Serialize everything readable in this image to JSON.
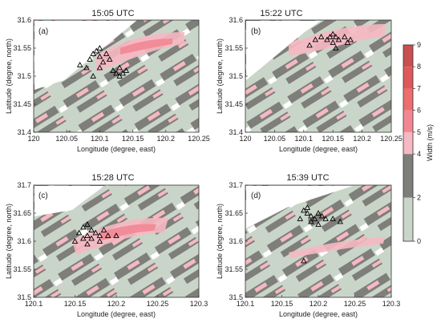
{
  "chart_data": {
    "type": "heatmap",
    "colorbar": {
      "label": "Width (m/s)",
      "ticks": [
        0,
        2,
        4,
        5,
        6,
        7,
        8,
        9
      ],
      "levels": [
        {
          "from": 0,
          "to": 2,
          "color": "#c9d5c8"
        },
        {
          "from": 2,
          "to": 4,
          "color": "#7e7e7a"
        },
        {
          "from": 4,
          "to": 5,
          "color": "#f6b8c2"
        },
        {
          "from": 5,
          "to": 6,
          "color": "#f28793"
        },
        {
          "from": 6,
          "to": 7,
          "color": "#ec6e6e"
        },
        {
          "from": 7,
          "to": 8,
          "color": "#de5a5a"
        },
        {
          "from": 8,
          "to": 9,
          "color": "#c8504f"
        }
      ]
    },
    "panels": [
      {
        "id": "a",
        "label": "(a)",
        "title": "15:05 UTC",
        "xlabel": "Longitude (degree, east)",
        "ylabel": "Latitude (degree, north)",
        "xlim": [
          120,
          120.25
        ],
        "ylim": [
          31.4,
          31.6
        ],
        "xticks": [
          "120",
          "120.05",
          "120.1",
          "120.15",
          "120.2",
          "120.25"
        ],
        "yticks": [
          "31.4",
          "31.45",
          "31.5",
          "31.55",
          "31.6"
        ],
        "empty_corner": "top-left",
        "markers": [
          [
            120.07,
            31.52
          ],
          [
            120.08,
            31.515
          ],
          [
            120.085,
            31.53
          ],
          [
            120.09,
            31.54
          ],
          [
            120.095,
            31.545
          ],
          [
            120.1,
            31.55
          ],
          [
            120.1,
            31.535
          ],
          [
            120.105,
            31.525
          ],
          [
            120.11,
            31.54
          ],
          [
            120.115,
            31.53
          ],
          [
            120.12,
            31.51
          ],
          [
            120.125,
            31.505
          ],
          [
            120.13,
            31.515
          ],
          [
            120.13,
            31.5
          ],
          [
            120.135,
            31.505
          ],
          [
            120.14,
            31.51
          ],
          [
            120.1,
            31.515
          ],
          [
            120.09,
            31.5
          ]
        ]
      },
      {
        "id": "b",
        "label": "(b)",
        "title": "15:22 UTC",
        "xlabel": "Longitude (degree, east)",
        "ylabel": "Latitude (degree, north)",
        "xlim": [
          120,
          120.25
        ],
        "ylim": [
          31.4,
          31.6
        ],
        "xticks": [
          "120",
          "120.05",
          "120.1",
          "120.15",
          "120.2",
          "120.25"
        ],
        "yticks": [
          "31.4",
          "31.45",
          "31.5",
          "31.55",
          "31.6"
        ],
        "empty_corner": "top-left",
        "markers": [
          [
            120.12,
            31.565
          ],
          [
            120.13,
            31.57
          ],
          [
            120.14,
            31.565
          ],
          [
            120.145,
            31.57
          ],
          [
            120.15,
            31.575
          ],
          [
            120.155,
            31.57
          ],
          [
            120.16,
            31.565
          ],
          [
            120.15,
            31.56
          ],
          [
            120.17,
            31.57
          ],
          [
            120.18,
            31.565
          ],
          [
            120.175,
            31.56
          ],
          [
            120.155,
            31.55
          ],
          [
            120.11,
            31.555
          ]
        ]
      },
      {
        "id": "c",
        "label": "(c)",
        "title": "15:28 UTC",
        "xlabel": "Longitude (degree, east)",
        "ylabel": "Latitude (degree, north)",
        "xlim": [
          120.1,
          120.3
        ],
        "ylim": [
          31.5,
          31.7
        ],
        "xticks": [
          "120.1",
          "120.15",
          "120.2",
          "120.25",
          "120.3"
        ],
        "yticks": [
          "31.5",
          "31.55",
          "31.6",
          "31.65",
          "31.7"
        ],
        "empty_corner": "top-left",
        "markers": [
          [
            120.155,
            31.615
          ],
          [
            120.16,
            31.625
          ],
          [
            120.165,
            31.63
          ],
          [
            120.17,
            31.62
          ],
          [
            120.175,
            31.615
          ],
          [
            120.165,
            31.61
          ],
          [
            120.16,
            31.605
          ],
          [
            120.17,
            31.605
          ],
          [
            120.18,
            31.61
          ],
          [
            120.185,
            31.62
          ],
          [
            120.19,
            31.61
          ],
          [
            120.2,
            31.61
          ],
          [
            120.15,
            31.6
          ],
          [
            120.165,
            31.595
          ],
          [
            120.18,
            31.6
          ]
        ]
      },
      {
        "id": "d",
        "label": "(d)",
        "title": "15:39 UTC",
        "xlabel": "Longitude (degree, east)",
        "ylabel": "Latitude (degree, north)",
        "xlim": [
          120.1,
          120.3
        ],
        "ylim": [
          31.5,
          31.7
        ],
        "xticks": [
          "120.1",
          "120.15",
          "120.2",
          "120.25",
          "120.3"
        ],
        "yticks": [
          "31.5",
          "31.55",
          "31.6",
          "31.65",
          "31.7"
        ],
        "empty_corner": "top-left",
        "markers": [
          [
            120.18,
            31.655
          ],
          [
            120.185,
            31.65
          ],
          [
            120.19,
            31.645
          ],
          [
            120.195,
            31.64
          ],
          [
            120.2,
            31.65
          ],
          [
            120.205,
            31.645
          ],
          [
            120.21,
            31.64
          ],
          [
            120.19,
            31.635
          ],
          [
            120.2,
            31.63
          ],
          [
            120.22,
            31.64
          ],
          [
            120.23,
            31.635
          ],
          [
            120.175,
            31.64
          ],
          [
            120.185,
            31.66
          ],
          [
            120.18,
            31.565
          ]
        ]
      }
    ]
  }
}
